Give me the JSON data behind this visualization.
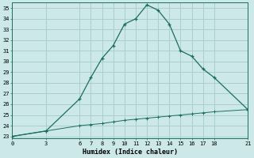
{
  "xlabel": "Humidex (Indice chaleur)",
  "bg_color": "#cce8e8",
  "grid_color": "#aacece",
  "line_color": "#1a6e60",
  "curve1_x": [
    0,
    3,
    6,
    7,
    8,
    9,
    10,
    11,
    12,
    13,
    14,
    15,
    16,
    17,
    18,
    21
  ],
  "curve1_y": [
    23.0,
    23.5,
    26.5,
    28.5,
    30.3,
    31.5,
    33.5,
    34.0,
    35.3,
    34.8,
    33.5,
    31.0,
    30.5,
    29.3,
    28.5,
    25.5
  ],
  "curve2_x": [
    0,
    3,
    6,
    7,
    8,
    9,
    10,
    11,
    12,
    13,
    14,
    15,
    16,
    17,
    18,
    21
  ],
  "curve2_y": [
    23.0,
    23.5,
    24.0,
    24.1,
    24.2,
    24.35,
    24.5,
    24.6,
    24.7,
    24.8,
    24.9,
    25.0,
    25.1,
    25.2,
    25.3,
    25.5
  ],
  "xlim": [
    0,
    21
  ],
  "ylim": [
    22.8,
    35.5
  ],
  "xticks": [
    0,
    3,
    6,
    7,
    8,
    9,
    10,
    11,
    12,
    13,
    14,
    15,
    16,
    17,
    18,
    21
  ],
  "yticks": [
    23,
    24,
    25,
    26,
    27,
    28,
    29,
    30,
    31,
    32,
    33,
    34,
    35
  ]
}
